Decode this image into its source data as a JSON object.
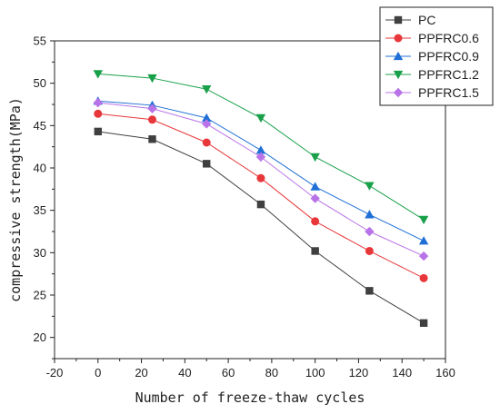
{
  "chart_data": {
    "type": "line",
    "xlabel": "Number of freeze-thaw cycles",
    "ylabel": "compressive strength(MPa)",
    "xlim": [
      -20,
      160
    ],
    "ylim": [
      17.5,
      55
    ],
    "x_ticks": [
      -20,
      0,
      20,
      40,
      60,
      80,
      100,
      120,
      140,
      160
    ],
    "y_ticks": [
      20,
      25,
      30,
      35,
      40,
      45,
      50,
      55
    ],
    "grid": false,
    "legend_position": "top-right",
    "x": [
      0,
      25,
      50,
      75,
      100,
      125,
      150
    ],
    "series": [
      {
        "name": "PC",
        "color": "#3f3f3f",
        "marker": "square",
        "values": [
          44.3,
          43.4,
          40.5,
          35.7,
          30.2,
          25.5,
          21.7
        ]
      },
      {
        "name": "PPFRC0.6",
        "color": "#e8373a",
        "marker": "circle",
        "values": [
          46.4,
          45.7,
          43.0,
          38.8,
          33.7,
          30.2,
          27.0
        ]
      },
      {
        "name": "PPFRC0.9",
        "color": "#1f6fd6",
        "marker": "triangle-up",
        "values": [
          47.9,
          47.4,
          45.9,
          42.1,
          37.8,
          34.5,
          31.4
        ]
      },
      {
        "name": "PPFRC1.2",
        "color": "#18a04a",
        "marker": "triangle-down",
        "values": [
          51.1,
          50.6,
          49.3,
          45.9,
          41.3,
          37.9,
          33.9
        ]
      },
      {
        "name": "PPFRC1.5",
        "color": "#b973e8",
        "marker": "diamond",
        "values": [
          47.7,
          47.0,
          45.2,
          41.3,
          36.4,
          32.5,
          29.6
        ]
      }
    ]
  }
}
